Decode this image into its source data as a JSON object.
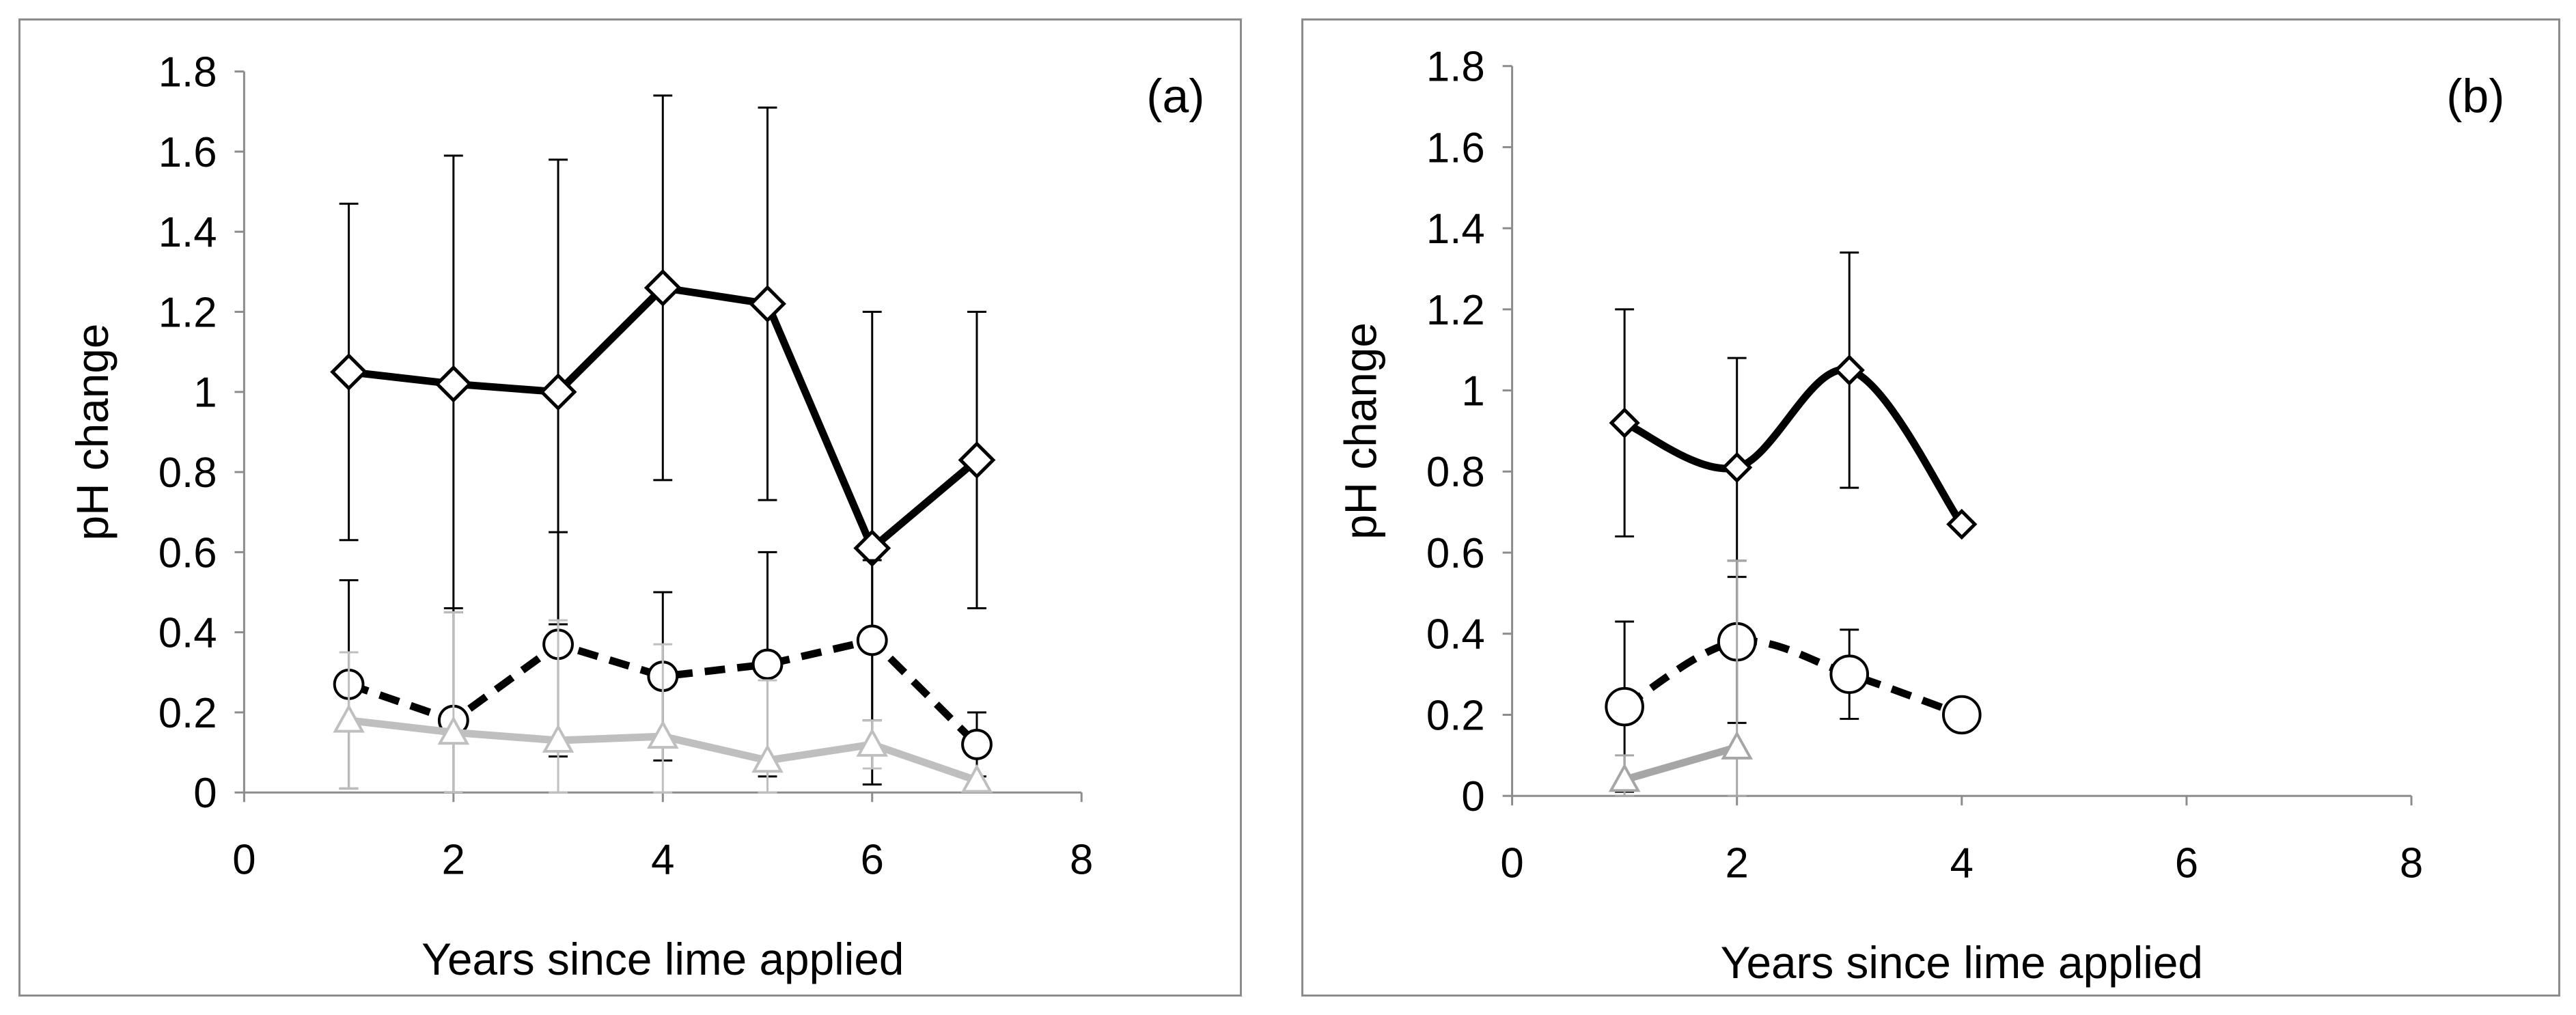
{
  "chart_data": [
    {
      "type": "line",
      "panel_label": "(a)",
      "xlabel": "Years since lime applied",
      "ylabel": "pH change",
      "xlim": [
        0,
        8
      ],
      "ylim": [
        0,
        1.8
      ],
      "x_ticks": [
        0,
        2,
        4,
        6,
        8
      ],
      "y_ticks": [
        "0",
        "0.2",
        "0.4",
        "0.6",
        "0.8",
        "1",
        "1.2",
        "1.4",
        "1.6",
        "1.8"
      ],
      "grid": false,
      "legend": "none",
      "series": [
        {
          "marker": "diamond",
          "line_style": "solid",
          "color": "#000000",
          "smooth": false,
          "points": [
            {
              "x": 1,
              "y": 1.05,
              "err": 0.42
            },
            {
              "x": 2,
              "y": 1.02,
              "err": 0.57
            },
            {
              "x": 3,
              "y": 1.0,
              "err": 0.58
            },
            {
              "x": 4,
              "y": 1.26,
              "err": 0.48
            },
            {
              "x": 5,
              "y": 1.22,
              "err": 0.49
            },
            {
              "x": 6,
              "y": 0.61,
              "err": 0.59
            },
            {
              "x": 7,
              "y": 0.83,
              "err": 0.37
            }
          ]
        },
        {
          "marker": "circle",
          "line_style": "dashed",
          "color": "#000000",
          "smooth": false,
          "points": [
            {
              "x": 1,
              "y": 0.27,
              "err": 0.26
            },
            {
              "x": 2,
              "y": 0.18,
              "err": 0.28
            },
            {
              "x": 3,
              "y": 0.37,
              "err": 0.28
            },
            {
              "x": 4,
              "y": 0.29,
              "err": 0.21
            },
            {
              "x": 5,
              "y": 0.32,
              "err": 0.28
            },
            {
              "x": 6,
              "y": 0.38,
              "err": 0.2
            },
            {
              "x": 7,
              "y": 0.12,
              "err": 0.08
            }
          ]
        },
        {
          "marker": "triangle",
          "line_style": "solid",
          "color": "#bfbfbf",
          "smooth": false,
          "points": [
            {
              "x": 1,
              "y": 0.18,
              "err": 0.17
            },
            {
              "x": 2,
              "y": 0.15,
              "err": 0.3
            },
            {
              "x": 3,
              "y": 0.13,
              "err": 0.3
            },
            {
              "x": 4,
              "y": 0.14,
              "err": 0.23
            },
            {
              "x": 5,
              "y": 0.08,
              "err": 0.2
            },
            {
              "x": 6,
              "y": 0.12,
              "err": 0.06
            },
            {
              "x": 7,
              "y": 0.03,
              "err": 0
            }
          ]
        }
      ]
    },
    {
      "type": "line",
      "panel_label": "(b)",
      "xlabel": "Years since lime applied",
      "ylabel": "pH change",
      "xlim": [
        0,
        8
      ],
      "ylim": [
        0,
        1.8
      ],
      "x_ticks": [
        0,
        2,
        4,
        6,
        8
      ],
      "y_ticks": [
        "0",
        "0.2",
        "0.4",
        "0.6",
        "0.8",
        "1",
        "1.2",
        "1.4",
        "1.6",
        "1.8"
      ],
      "grid": false,
      "legend": "none",
      "series": [
        {
          "marker": "diamond",
          "line_style": "solid",
          "color": "#000000",
          "smooth": true,
          "points": [
            {
              "x": 1,
              "y": 0.92,
              "err": 0.28
            },
            {
              "x": 2,
              "y": 0.81,
              "err": 0.27
            },
            {
              "x": 3,
              "y": 1.05,
              "err": 0.29
            },
            {
              "x": 4,
              "y": 0.67,
              "err": 0
            }
          ]
        },
        {
          "marker": "circle",
          "line_style": "dashed",
          "color": "#000000",
          "smooth": true,
          "points": [
            {
              "x": 1,
              "y": 0.22,
              "err": 0.21
            },
            {
              "x": 2,
              "y": 0.38,
              "err": 0.2
            },
            {
              "x": 3,
              "y": 0.3,
              "err": 0.11
            },
            {
              "x": 4,
              "y": 0.2,
              "err": 0
            }
          ]
        },
        {
          "marker": "triangle",
          "line_style": "solid",
          "color": "#a6a6a6",
          "smooth": false,
          "points": [
            {
              "x": 1,
              "y": 0.04,
              "err": 0.06
            },
            {
              "x": 2,
              "y": 0.12,
              "err": 0.46
            }
          ]
        }
      ]
    }
  ]
}
